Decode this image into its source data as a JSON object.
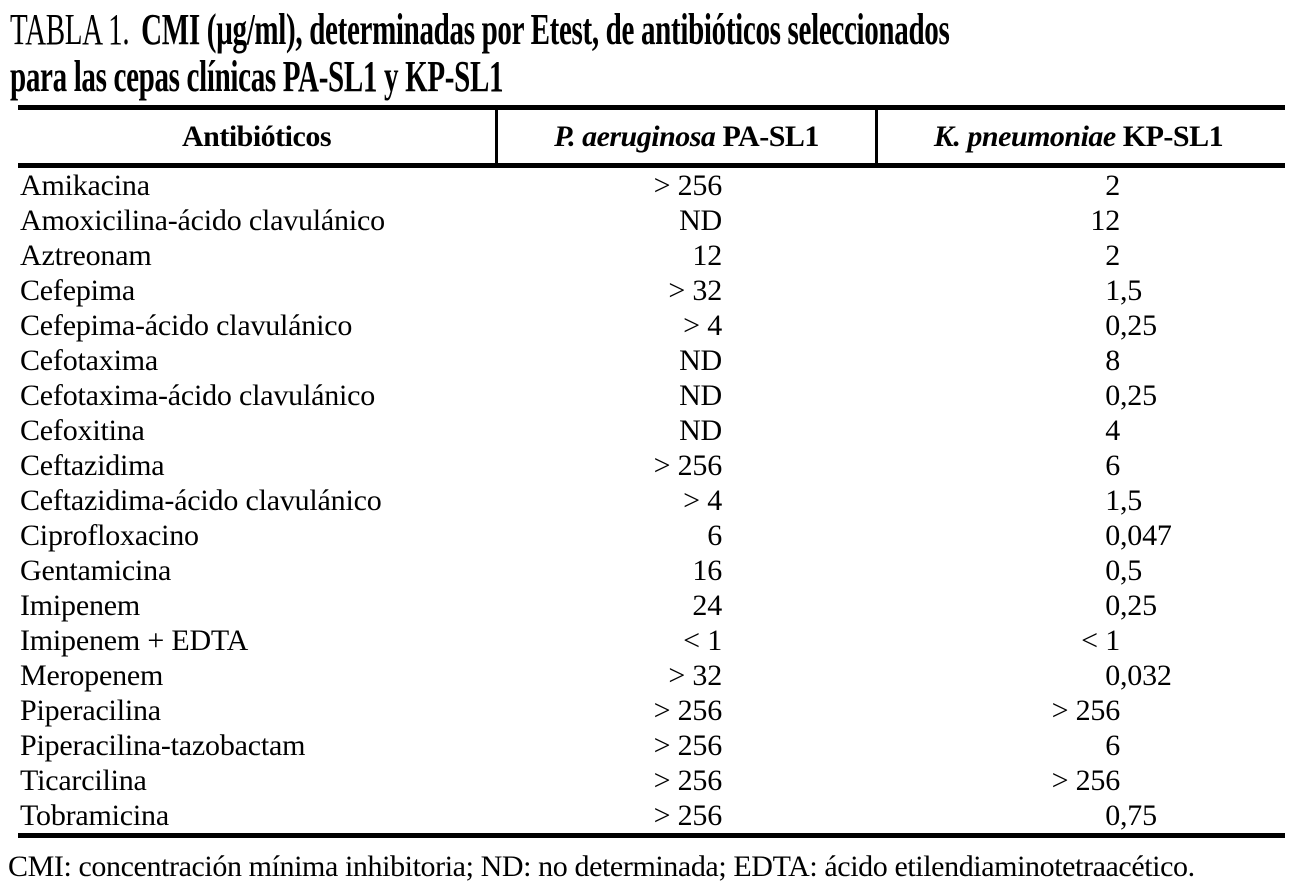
{
  "title": {
    "label": "TABLA 1.",
    "line1": "CMI (µg/ml), determinadas por Etest, de antibióticos seleccionados",
    "line2": "para las cepas clínicas PA-SL1 y KP-SL1"
  },
  "table": {
    "columns": [
      {
        "label": "Antibióticos"
      },
      {
        "species": "P. aeruginosa",
        "strain": "PA-SL1"
      },
      {
        "species": "K. pneumoniae",
        "strain": "KP-SL1"
      }
    ],
    "rows": [
      {
        "antibiotic": "Amikacina",
        "pa": "> 256",
        "kp": "2"
      },
      {
        "antibiotic": "Amoxicilina-ácido clavulánico",
        "pa": "ND",
        "kp": "12"
      },
      {
        "antibiotic": "Aztreonam",
        "pa": "12",
        "kp": "2"
      },
      {
        "antibiotic": "Cefepima",
        "pa": "> 32",
        "kp": "1,5"
      },
      {
        "antibiotic": "Cefepima-ácido clavulánico",
        "pa": "> 4",
        "kp": "0,25"
      },
      {
        "antibiotic": "Cefotaxima",
        "pa": "ND",
        "kp": "8"
      },
      {
        "antibiotic": "Cefotaxima-ácido clavulánico",
        "pa": "ND",
        "kp": "0,25"
      },
      {
        "antibiotic": "Cefoxitina",
        "pa": "ND",
        "kp": "4"
      },
      {
        "antibiotic": "Ceftazidima",
        "pa": "> 256",
        "kp": "6"
      },
      {
        "antibiotic": "Ceftazidima-ácido clavulánico",
        "pa": "> 4",
        "kp": "1,5"
      },
      {
        "antibiotic": "Ciprofloxacino",
        "pa": "6",
        "kp": "0,047"
      },
      {
        "antibiotic": "Gentamicina",
        "pa": "16",
        "kp": "0,5"
      },
      {
        "antibiotic": "Imipenem",
        "pa": "24",
        "kp": "0,25"
      },
      {
        "antibiotic": "Imipenem + EDTA",
        "pa": "< 1",
        "kp": "< 1"
      },
      {
        "antibiotic": "Meropenem",
        "pa": "> 32",
        "kp": "0,032"
      },
      {
        "antibiotic": "Piperacilina",
        "pa": "> 256",
        "kp": "> 256"
      },
      {
        "antibiotic": "Piperacilina-tazobactam",
        "pa": "> 256",
        "kp": "6"
      },
      {
        "antibiotic": "Ticarcilina",
        "pa": "> 256",
        "kp": "> 256"
      },
      {
        "antibiotic": "Tobramicina",
        "pa": "> 256",
        "kp": "0,75"
      }
    ]
  },
  "footnote": "CMI: concentración mínima inhibitoria; ND: no determinada; EDTA: ácido etilendiaminotetraacético.",
  "colors": {
    "ink": "#000000",
    "paper": "#ffffff"
  }
}
